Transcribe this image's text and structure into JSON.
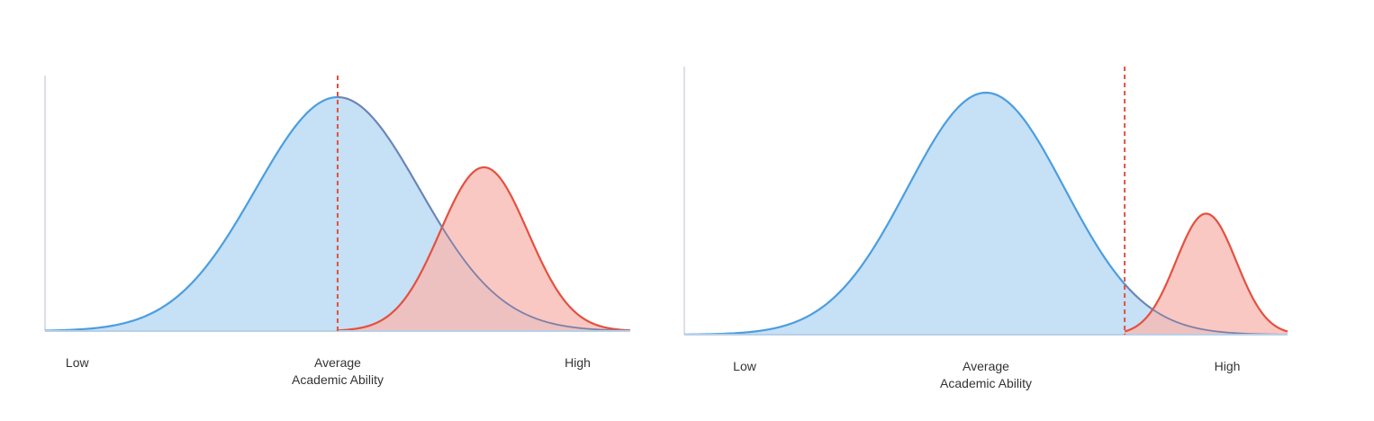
{
  "chart_data": [
    {
      "type": "area",
      "title": "",
      "xlabel": "Academic Ability",
      "ylabel": "",
      "x_tick_labels": [
        {
          "x": 5.5,
          "label": "Low"
        },
        {
          "x": 50,
          "label": "Average"
        },
        {
          "x": 91,
          "label": "High"
        }
      ],
      "xlim": [
        0,
        100
      ],
      "ylim": [
        0,
        1.15
      ],
      "grid": false,
      "threshold_x": 50,
      "series": [
        {
          "distribution": "normal",
          "mean": 50,
          "sd": 14,
          "peak": 1.0,
          "color": "#4a9ee0",
          "fill": "#c6e0f5"
        },
        {
          "distribution": "normal",
          "mean": 75,
          "sd": 7.5,
          "peak": 0.7,
          "color": "#e4503f",
          "fill": "#f7b9b1",
          "truncated_below_threshold": true
        }
      ]
    },
    {
      "type": "area",
      "title": "",
      "xlabel": "Academic Ability",
      "ylabel": "",
      "x_tick_labels": [
        {
          "x": 10,
          "label": "Low"
        },
        {
          "x": 50,
          "label": "Average"
        },
        {
          "x": 90,
          "label": "High"
        }
      ],
      "xlim": [
        0,
        100
      ],
      "ylim": [
        0,
        1.1
      ],
      "grid": false,
      "threshold_x": 73,
      "series": [
        {
          "distribution": "normal",
          "mean": 50,
          "sd": 13,
          "peak": 1.0,
          "color": "#4a9ee0",
          "fill": "#c6e0f5"
        },
        {
          "distribution": "normal",
          "mean": 86.5,
          "sd": 5,
          "peak": 0.5,
          "color": "#e4503f",
          "fill": "#f7b9b1",
          "truncated_below_threshold": true
        }
      ]
    }
  ]
}
